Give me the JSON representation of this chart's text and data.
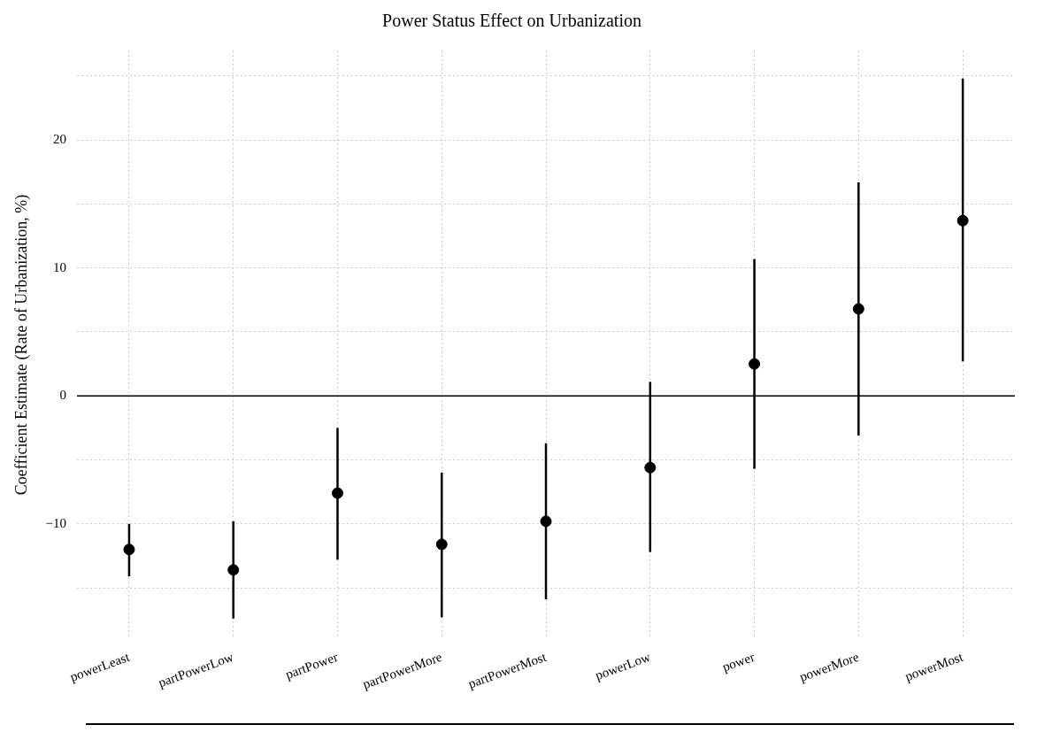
{
  "chart_data": {
    "type": "scatter",
    "title": "Power Status Effect on Urbanization",
    "ylabel": "Coefficient Estimate (Rate of Urbanization, %)",
    "categories": [
      "powerLeast",
      "partPowerLow",
      "partPower",
      "partPowerMore",
      "partPowerMost",
      "powerLow",
      "power",
      "powerMore",
      "powerMost"
    ],
    "values": [
      -12.0,
      -13.6,
      -7.6,
      -11.6,
      -9.8,
      -5.6,
      2.5,
      6.8,
      13.7
    ],
    "errors": [
      [
        -14.1,
        -10.0
      ],
      [
        -17.4,
        -9.8
      ],
      [
        -12.8,
        -2.5
      ],
      [
        -17.3,
        -6.0
      ],
      [
        -15.9,
        -3.7
      ],
      [
        -12.2,
        1.1
      ],
      [
        -5.7,
        10.7
      ],
      [
        -3.1,
        16.7
      ],
      [
        2.7,
        24.8
      ]
    ],
    "color": "#000000",
    "marker": "circle",
    "grid": true,
    "ylim": [
      -19,
      27
    ],
    "yticks": [
      {
        "value": -15,
        "label": null
      },
      -10,
      {
        "value": -5,
        "label": null
      },
      0,
      {
        "value": 5,
        "label": null
      },
      10,
      {
        "value": 15,
        "label": null
      },
      20,
      {
        "value": 25,
        "label": null
      }
    ],
    "ref_lines": [
      {
        "axis": "y",
        "value": 0,
        "color": "#000000"
      }
    ]
  }
}
